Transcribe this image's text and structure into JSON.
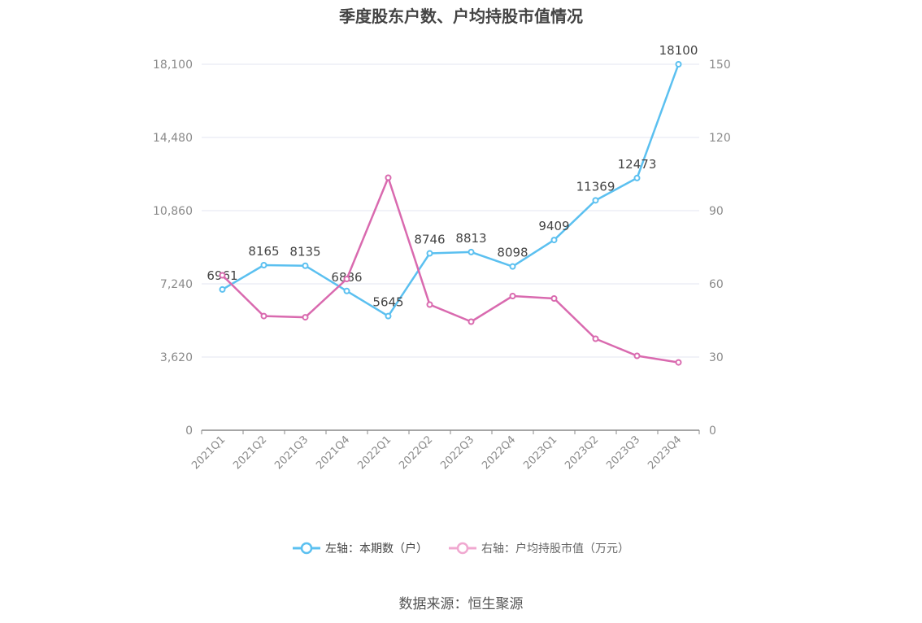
{
  "chart_data": {
    "type": "line",
    "title": "季度股东户数、户均持股市值情况",
    "categories": [
      "2021Q1",
      "2021Q2",
      "2021Q3",
      "2021Q4",
      "2022Q1",
      "2022Q2",
      "2022Q3",
      "2022Q4",
      "2023Q1",
      "2023Q2",
      "2023Q3",
      "2023Q4"
    ],
    "series": [
      {
        "name": "左轴：本期数（户）",
        "axis": "left",
        "color": "#5bc0f0",
        "values": [
          6961,
          8165,
          8135,
          6886,
          5645,
          8746,
          8813,
          8098,
          9409,
          11369,
          12473,
          18100
        ],
        "data_labels": [
          "6961",
          "8165",
          "8135",
          "6886",
          "5645",
          "8746",
          "8813",
          "8098",
          "9409",
          "11369",
          "12473",
          "18100"
        ]
      },
      {
        "name": "右轴：户均持股市值（万元）",
        "axis": "right",
        "color": "#d96aaf",
        "values": [
          63.5,
          46.8,
          46.3,
          62.0,
          103.5,
          51.5,
          44.5,
          55.0,
          54.0,
          37.5,
          30.5,
          27.8
        ]
      }
    ],
    "y_left": {
      "ylim": [
        0,
        18100
      ],
      "ticks": [
        0,
        3620,
        7240,
        10860,
        14480,
        18100
      ],
      "tick_labels": [
        "0",
        "3,620",
        "7,240",
        "10,860",
        "14,480",
        "18,100"
      ]
    },
    "y_right": {
      "ylim": [
        0,
        150
      ],
      "ticks": [
        0,
        30,
        60,
        90,
        120,
        150
      ],
      "tick_labels": [
        "0",
        "30",
        "60",
        "90",
        "120",
        "150"
      ]
    },
    "grid": true,
    "legend_position": "bottom"
  },
  "source": "数据来源：恒生聚源"
}
